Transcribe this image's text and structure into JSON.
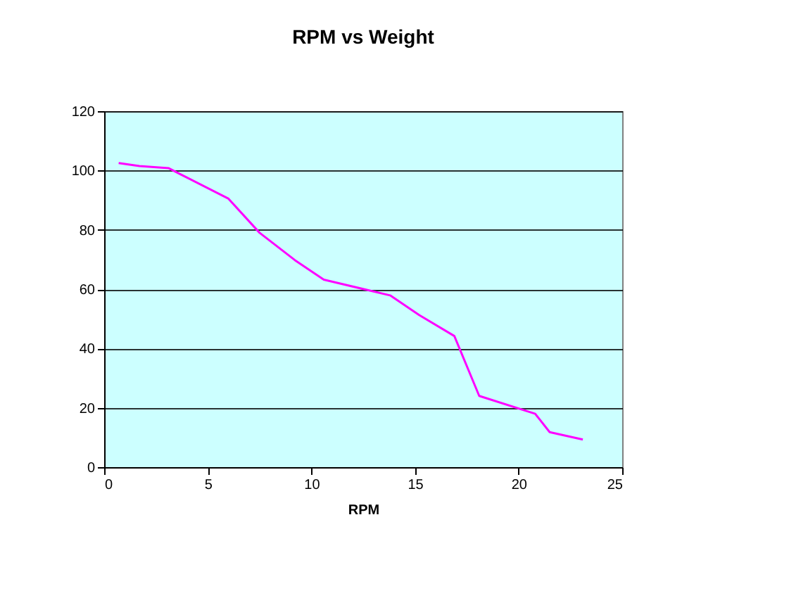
{
  "chart_data": {
    "type": "line",
    "title": "RPM vs Weight",
    "xlabel": "RPM",
    "x": [
      0.7,
      1.7,
      3.1,
      6.0,
      7.5,
      9.2,
      10.6,
      13.8,
      15.2,
      16.9,
      18.1,
      20.8,
      21.5,
      23.1
    ],
    "series": [
      {
        "color": "#ff00ff",
        "values": [
          102.5,
          101.5,
          100.8,
          90.5,
          79,
          69.8,
          63.2,
          57.9,
          51.3,
          44.2,
          24.0,
          18.0,
          11.8,
          9.3
        ]
      }
    ],
    "xlim": [
      0,
      25
    ],
    "xticks": [
      0,
      5,
      10,
      15,
      20,
      25
    ],
    "ylim": [
      0,
      120
    ],
    "yticks": [
      0,
      20,
      40,
      60,
      80,
      100,
      120
    ],
    "grid": "y",
    "legend": false,
    "marker": "none",
    "line_style": "solid"
  }
}
